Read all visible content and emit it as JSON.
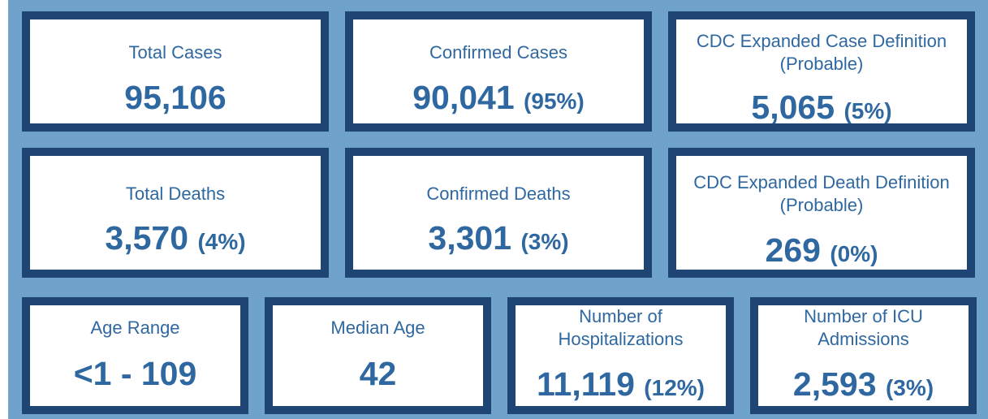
{
  "colors": {
    "panel_bg": "#6fa3cc",
    "card_border": "#1f4575",
    "card_bg": "#ffffff",
    "text": "#2f68a1"
  },
  "cards": [
    {
      "label": "Total Cases",
      "value": "95,106",
      "pct": ""
    },
    {
      "label": "Confirmed Cases",
      "value": "90,041",
      "pct": "(95%)"
    },
    {
      "label_line1": "CDC Expanded Case Definition",
      "label_line2": "(Probable)",
      "value": "5,065",
      "pct": "(5%)"
    },
    {
      "label": "Total Deaths",
      "value": "3,570",
      "pct": "(4%)"
    },
    {
      "label": "Confirmed Deaths",
      "value": "3,301",
      "pct": "(3%)"
    },
    {
      "label_line1": "CDC Expanded Death Definition",
      "label_line2": "(Probable)",
      "value": "269",
      "pct": "(0%)"
    },
    {
      "label": "Age Range",
      "value": "<1 - 109",
      "pct": ""
    },
    {
      "label": "Median Age",
      "value": "42",
      "pct": ""
    },
    {
      "label_line1": "Number of",
      "label_line2": "Hospitalizations",
      "value": "11,119",
      "pct": "(12%)"
    },
    {
      "label_line1": "Number of ICU",
      "label_line2": "Admissions",
      "value": "2,593",
      "pct": "(3%)"
    }
  ]
}
